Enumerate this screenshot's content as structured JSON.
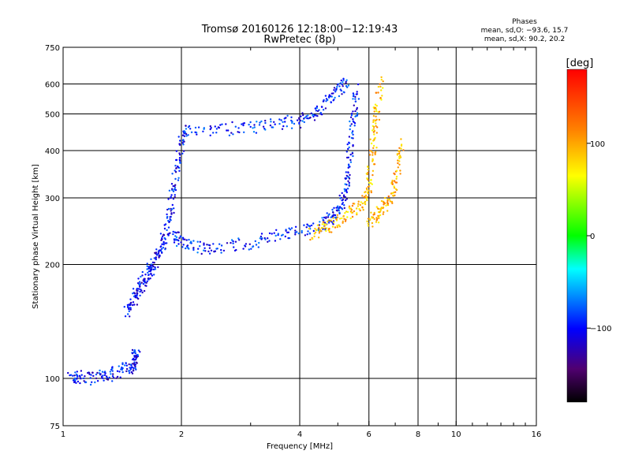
{
  "chart_data": {
    "type": "scatter",
    "title": "Tromsø 20160126 12:18:00−12:19:43",
    "subtitle": "RwPretec (8p)",
    "xlabel": "Frequency [MHz]",
    "ylabel": "Stationary phase Virtual Height [km]",
    "x_scale": "log",
    "y_scale": "log",
    "xlim": [
      1,
      16
    ],
    "ylim": [
      75,
      750
    ],
    "grid": true,
    "x_ticks": [
      1,
      2,
      4,
      6,
      8,
      10,
      16
    ],
    "x_tick_labels": [
      "1",
      "2",
      "4",
      "6",
      "8",
      "10",
      "16"
    ],
    "x_minor_ticks": [
      3,
      5,
      7,
      9,
      11,
      12,
      13,
      14,
      15
    ],
    "y_ticks": [
      75,
      100,
      200,
      300,
      400,
      500,
      600,
      750
    ],
    "y_tick_labels": [
      "75",
      "100",
      "200",
      "300",
      "400",
      "500",
      "600",
      "750"
    ],
    "stats_title": "Phases",
    "stats_lines": [
      "mean, sd,O: −93.6, 15.7",
      "mean, sd,X:  90.2, 20.2"
    ],
    "colorbar": {
      "label": "[deg]",
      "range": [
        -180,
        180
      ],
      "ticks": [
        100,
        0,
        -100
      ],
      "tick_labels": [
        "100",
        "0",
        "−100"
      ],
      "colors": [
        "#ff0000",
        "#ff8000",
        "#ffff00",
        "#00ff00",
        "#00ffff",
        "#0000ff",
        "#800080",
        "#000000"
      ]
    },
    "traces": [
      {
        "name": "",
        "phase": -100,
        "points": [
          [
            1.05,
            100
          ],
          [
            1.1,
            101
          ],
          [
            1.2,
            100
          ],
          [
            1.3,
            102
          ],
          [
            1.4,
            105
          ],
          [
            1.5,
            108
          ],
          [
            1.52,
            112
          ],
          [
            1.54,
            116
          ]
        ]
      },
      {
        "name": "",
        "phase": -100,
        "points": [
          [
            1.45,
            150
          ],
          [
            1.5,
            160
          ],
          [
            1.55,
            170
          ],
          [
            1.6,
            180
          ],
          [
            1.65,
            190
          ],
          [
            1.7,
            200
          ],
          [
            1.75,
            215
          ],
          [
            1.8,
            230
          ],
          [
            1.85,
            260
          ],
          [
            1.9,
            300
          ],
          [
            1.95,
            360
          ],
          [
            2.0,
            420
          ],
          [
            2.05,
            460
          ]
        ]
      },
      {
        "name": "",
        "phase": -95,
        "points": [
          [
            1.9,
            240
          ],
          [
            2.0,
            230
          ],
          [
            2.2,
            222
          ],
          [
            2.5,
            222
          ],
          [
            3.0,
            228
          ],
          [
            3.5,
            238
          ],
          [
            4.0,
            245
          ],
          [
            4.5,
            255
          ],
          [
            4.8,
            265
          ],
          [
            5.0,
            275
          ],
          [
            5.2,
            300
          ],
          [
            5.3,
            350
          ],
          [
            5.4,
            420
          ],
          [
            5.5,
            500
          ],
          [
            5.6,
            590
          ]
        ]
      },
      {
        "name": "",
        "phase": -95,
        "points": [
          [
            2.05,
            460
          ],
          [
            2.5,
            455
          ],
          [
            3.0,
            460
          ],
          [
            3.5,
            470
          ],
          [
            4.0,
            480
          ],
          [
            4.4,
            500
          ],
          [
            4.7,
            540
          ],
          [
            5.0,
            580
          ],
          [
            5.3,
            610
          ]
        ]
      },
      {
        "name": "",
        "phase": 90,
        "points": [
          [
            4.3,
            240
          ],
          [
            4.6,
            250
          ],
          [
            5.0,
            260
          ],
          [
            5.4,
            275
          ],
          [
            5.8,
            290
          ],
          [
            6.0,
            320
          ],
          [
            6.1,
            380
          ],
          [
            6.2,
            450
          ],
          [
            6.3,
            520
          ],
          [
            6.4,
            610
          ]
        ]
      },
      {
        "name": "",
        "phase": 95,
        "points": [
          [
            6.0,
            260
          ],
          [
            6.3,
            270
          ],
          [
            6.6,
            285
          ],
          [
            6.9,
            310
          ],
          [
            7.1,
            360
          ],
          [
            7.3,
            420
          ]
        ]
      }
    ]
  }
}
